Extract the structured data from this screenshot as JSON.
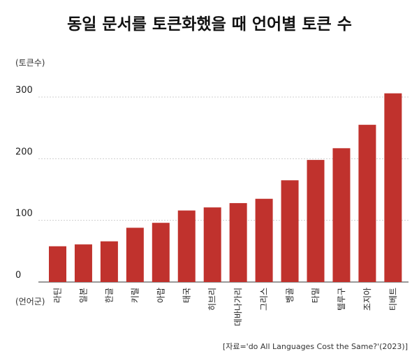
{
  "chart_data": {
    "type": "bar",
    "title": "동일 문서를 토큰화했을 때 언어별 토큰 수",
    "ylabel": "(토큰수)",
    "xlabel": "(언어군)",
    "categories": [
      "라틴",
      "일본",
      "한글",
      "키릴",
      "아랍",
      "태국",
      "히브리",
      "데바나가리",
      "그리스",
      "벵골",
      "타밀",
      "텔루구",
      "조지아",
      "티베트"
    ],
    "values": [
      58,
      61,
      66,
      88,
      96,
      116,
      121,
      128,
      135,
      165,
      198,
      217,
      255,
      306
    ],
    "ylim": [
      0,
      300
    ],
    "yticks": [
      0,
      100,
      200,
      300
    ],
    "bar_color": "#c0322d",
    "grid": true,
    "source": "[자료='do All Languages Cost the Same?'(2023)]"
  }
}
